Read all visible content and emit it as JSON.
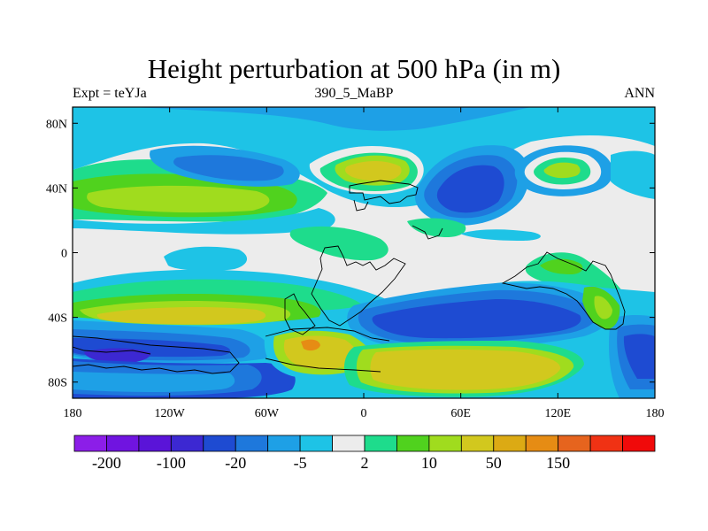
{
  "title": "Height perturbation at 500 hPa (in m)",
  "left_label": "Expt = teYJa",
  "center_label": "390_5_MaBP",
  "right_label": "ANN",
  "map": {
    "lon_range": [
      -180,
      180
    ],
    "lat_range": [
      -90,
      90
    ],
    "lat_ticks": [
      {
        "value": 80,
        "label": "80N"
      },
      {
        "value": 40,
        "label": "40N"
      },
      {
        "value": 0,
        "label": "0"
      },
      {
        "value": -40,
        "label": "40S"
      },
      {
        "value": -80,
        "label": "80S"
      }
    ],
    "lon_ticks": [
      {
        "value": -180,
        "label": "180"
      },
      {
        "value": -120,
        "label": "120W"
      },
      {
        "value": -60,
        "label": "60W"
      },
      {
        "value": 0,
        "label": "0"
      },
      {
        "value": 60,
        "label": "60E"
      },
      {
        "value": 120,
        "label": "120E"
      },
      {
        "value": 180,
        "label": "180"
      }
    ],
    "background_color": "#ececec"
  },
  "colorbar": {
    "colors": [
      "#8c1ee8",
      "#7014e0",
      "#5a14d8",
      "#3c28d2",
      "#1e4bd2",
      "#1e78dc",
      "#1ea0e6",
      "#1ec3e6",
      "#ececec",
      "#1edc8c",
      "#50d21e",
      "#a0dc1e",
      "#d2c81e",
      "#dcaa14",
      "#e68c14",
      "#e6641e",
      "#f03214",
      "#f00a0a"
    ],
    "labels": [
      {
        "after_box": 1,
        "text": "-200"
      },
      {
        "after_box": 3,
        "text": "-100"
      },
      {
        "after_box": 5,
        "text": "-20"
      },
      {
        "after_box": 7,
        "text": "-5"
      },
      {
        "after_box": 9,
        "text": "2"
      },
      {
        "after_box": 11,
        "text": "10"
      },
      {
        "after_box": 13,
        "text": "50"
      },
      {
        "after_box": 15,
        "text": "150"
      }
    ]
  }
}
